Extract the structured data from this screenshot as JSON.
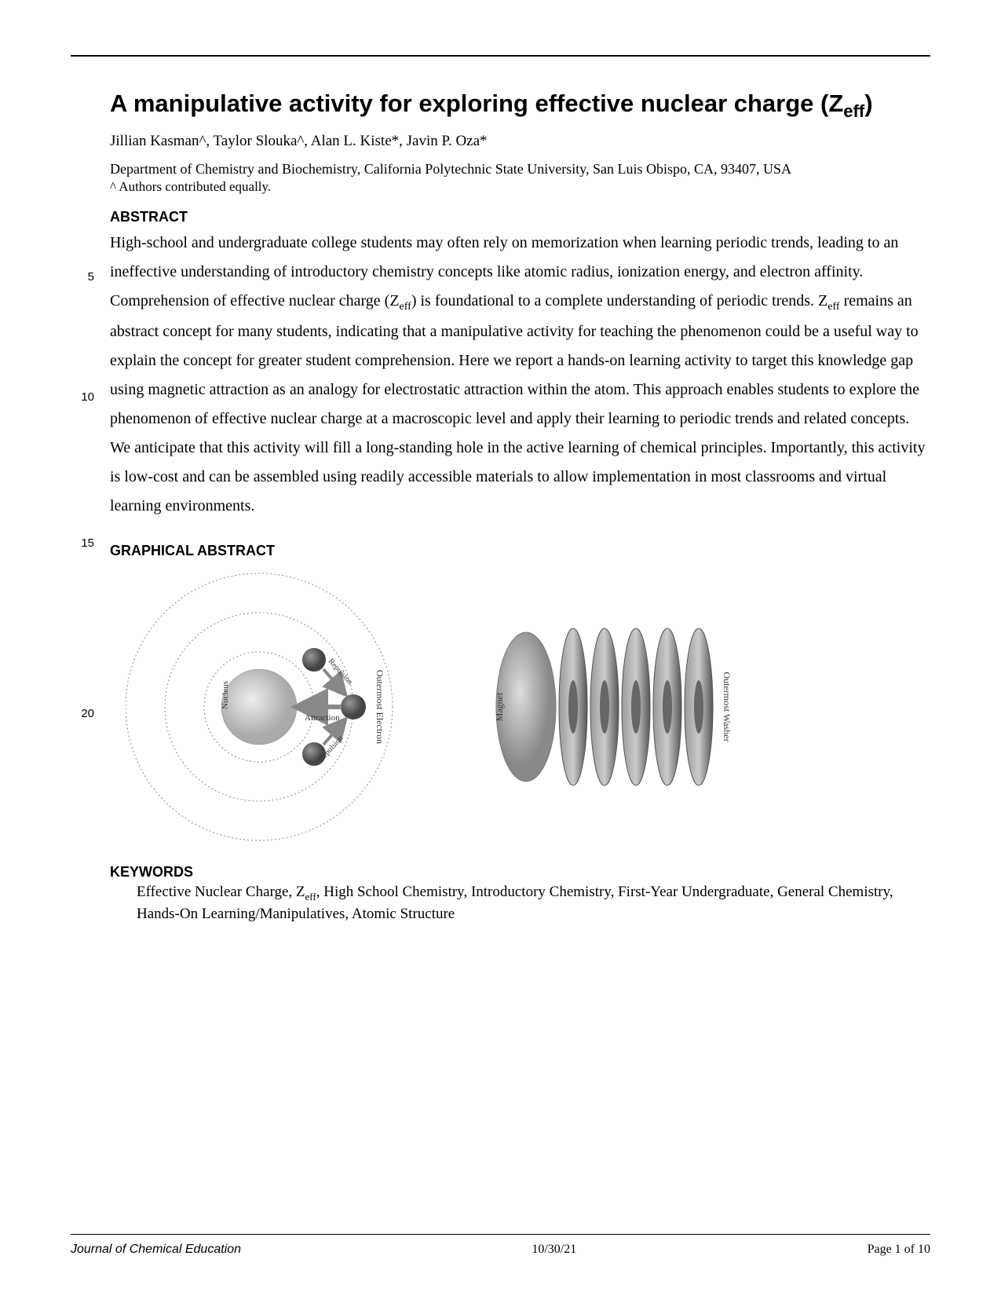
{
  "title_main": "A manipulative activity for exploring effective nuclear charge (Z",
  "title_sub": "eff",
  "title_close": ")",
  "authors": "Jillian Kasman^, Taylor Slouka^, Alan L. Kiste*, Javin P. Oza*",
  "affiliation": "Department of Chemistry and Biochemistry, California Polytechnic State University, San Luis Obispo, CA, 93407, USA",
  "equal_note": "^ Authors contributed equally.",
  "abstract_head": "ABSTRACT",
  "abstract_body": "High-school and undergraduate college students may often rely on memorization when learning periodic trends, leading to an ineffective understanding of introductory chemistry concepts like atomic radius, ionization energy, and electron affinity. Comprehension of effective nuclear charge (Z___eff___) is foundational to a complete understanding of periodic trends. Z___eff___ remains an abstract concept for many students, indicating that a manipulative activity for teaching the phenomenon could be a useful way to explain the concept for greater student comprehension. Here we report a hands-on learning activity to target this knowledge gap using magnetic attraction as an analogy for electrostatic attraction within the atom. This approach enables students to explore the phenomenon of effective nuclear charge at a macroscopic level and apply their learning to periodic trends and related concepts. We anticipate that this activity will fill a long-standing hole in the active learning of chemical principles. Importantly, this activity is low-cost and can be assembled using readily accessible materials to allow implementation in most classrooms and virtual learning environments.",
  "graphical_head": "GRAPHICAL ABSTRACT",
  "diagram": {
    "atom": {
      "nucleus_label": "Nucleus",
      "attraction_label": "Attraction",
      "repulsion_label_top": "Repulsion",
      "repulsion_label_bot": "Repulsion",
      "outer_label": "Outermost Electron",
      "shell_color": "#888888",
      "nucleus_fill": "#bbbbbb",
      "electron_fill": "#666666",
      "arrow_color": "#888888"
    },
    "washers": {
      "magnet_label": "Magnet",
      "outer_label": "Outermost Washer",
      "magnet_fill": "#aaaaaa",
      "washer_fill": "#777777"
    }
  },
  "keywords_head": "KEYWORDS",
  "keywords_body": "Effective Nuclear Charge, Z___eff___, High School Chemistry, Introductory Chemistry, First-Year Undergraduate, General Chemistry, Hands-On Learning/Manipulatives, Atomic Structure",
  "line_numbers": {
    "5": 232,
    "10": 385,
    "15": 571,
    "20": 788
  },
  "footer": {
    "journal": "Journal of Chemical Education",
    "date": "10/30/21",
    "page": "Page 1 of 10"
  }
}
